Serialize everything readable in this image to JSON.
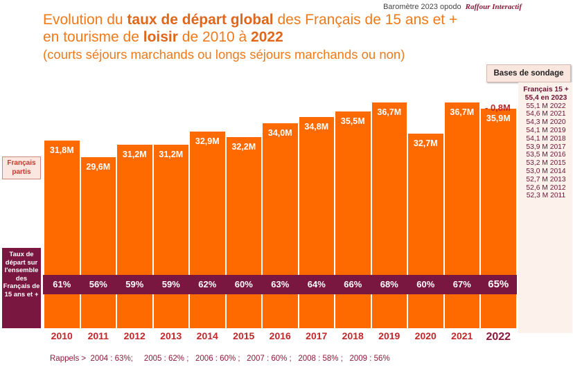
{
  "header": {
    "source_text": "Baromètre 2023 opodo",
    "source_brand": "Raffour Interactif"
  },
  "title": {
    "line1_pre": "Evolution du ",
    "line1_bold": "taux de départ global",
    "line1_post": " des Français de 15 ans et +",
    "line2_pre": "en tourisme de ",
    "line2_bold1": "loisir",
    "line2_mid": " de 2010 à ",
    "line2_bold2": "2022",
    "subtitle": "(courts séjours marchands ou longs séjours marchands ou non)"
  },
  "labels": {
    "francais_partis": "Français partis",
    "taux_depart": "Taux de départ sur l'ensemble des Français de 15 ans et +",
    "delta_2022": "- 0,8M"
  },
  "bases": {
    "title": "Bases de sondage",
    "header_line1": "Français 15 +",
    "header_line2": "55,4 en 2023",
    "items": [
      "55,1 M 2022",
      "54,6 M 2021",
      "54,3 M 2020",
      "54,1 M 2019",
      "54,1 M 2018",
      "53,9 M 2017",
      "53,5 M 2016",
      "53,2 M 2015",
      "53,0 M 2014",
      "52,7 M 2013",
      "52,6 M  2012",
      "52,3 M 2011"
    ]
  },
  "rappels": "Rappels >  2004 : 63%;     2005 : 62% ;   2006 : 60% ;   2007 : 60% ;   2008 : 58% ;   2009 : 56%",
  "colors": {
    "bar": "#ff6a00",
    "band": "#7a1740",
    "title": "#f07a1a",
    "year": "#c0282a"
  },
  "chart_data": {
    "type": "bar",
    "categories": [
      "2010",
      "2011",
      "2012",
      "2013",
      "2014",
      "2015",
      "2016",
      "2017",
      "2018",
      "2019",
      "2020",
      "2021",
      "2022"
    ],
    "series": [
      {
        "values": [
          31.8,
          29.6,
          31.2,
          31.2,
          32.9,
          32.2,
          34.0,
          34.8,
          35.5,
          36.7,
          32.7,
          36.7,
          35.9
        ],
        "value_labels": [
          "31,8M",
          "29,6M",
          "31,2M",
          "31,2M",
          "32,9M",
          "32,2M",
          "34,0M",
          "34,8M",
          "35,5M",
          "36,7M",
          "32,7M",
          "36,7M",
          "35,9M"
        ]
      },
      {
        "values": [
          61,
          56,
          59,
          59,
          62,
          60,
          63,
          64,
          66,
          68,
          60,
          67,
          65
        ],
        "value_labels": [
          "61%",
          "56%",
          "59%",
          "59%",
          "62%",
          "60%",
          "63%",
          "64%",
          "66%",
          "68%",
          "60%",
          "67%",
          "65%"
        ]
      }
    ]
  }
}
